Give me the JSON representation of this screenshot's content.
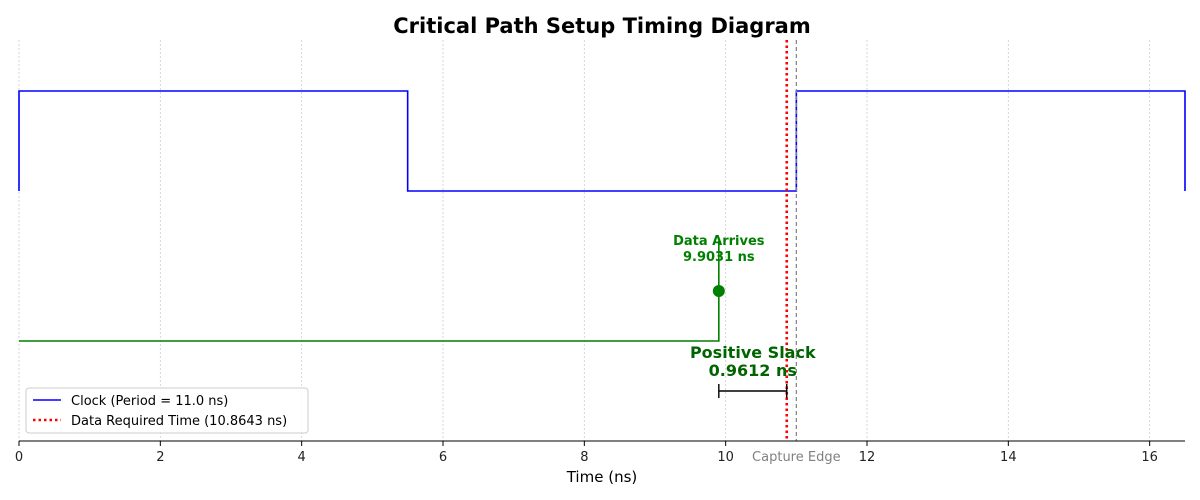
{
  "chart_data": {
    "type": "line",
    "title": "Critical Path Setup Timing Diagram",
    "xlabel": "Time (ns)",
    "ylabel": "",
    "xlim": [
      0,
      16.5
    ],
    "x_ticks": [
      0,
      2,
      4,
      6,
      8,
      10,
      12,
      14,
      16
    ],
    "x_tick_labels": [
      "0",
      "2",
      "4",
      "6",
      "8",
      "10",
      "12",
      "14",
      "16"
    ],
    "grid": "vertical-dotted",
    "clock": {
      "name": "Clock (Period = 11.0 ns)",
      "color": "#0000ff",
      "x": [
        0,
        0,
        5.5,
        5.5,
        11.0,
        11.0,
        16.5,
        16.5
      ],
      "level": [
        "low",
        "high",
        "high",
        "low",
        "low",
        "high",
        "high",
        "low"
      ]
    },
    "data_signal": {
      "color": "#008000",
      "x": [
        0,
        9.9031,
        9.9031
      ],
      "level": [
        "low",
        "low",
        "high"
      ],
      "arrival_time": 9.9031,
      "arrival_label_line1": "Data Arrives",
      "arrival_label_line2": "9.9031 ns"
    },
    "required_time": {
      "name": "Data Required Time (10.8643 ns)",
      "x": 10.8643,
      "color": "#ff0000"
    },
    "capture_edge": {
      "x": 11.0,
      "label": "Capture Edge",
      "color": "#808080"
    },
    "slack": {
      "from": 9.9031,
      "to": 10.8643,
      "value": 0.9612,
      "label_line1": "Positive Slack",
      "label_line2": "0.9612 ns",
      "color": "#006400"
    },
    "legend": {
      "position": "lower-left",
      "entries": [
        {
          "label": "Clock (Period = 11.0 ns)",
          "style": "solid",
          "color": "#0000ff"
        },
        {
          "label": "Data Required Time (10.8643 ns)",
          "style": "dotted",
          "color": "#ff0000"
        }
      ]
    }
  }
}
